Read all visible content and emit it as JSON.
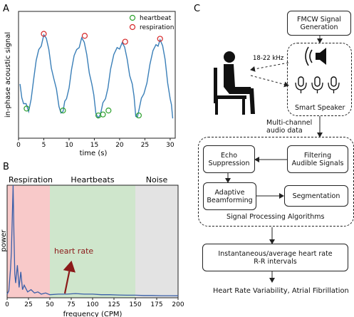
{
  "panels": {
    "a": "A",
    "b": "B",
    "c": "C"
  },
  "panel_a": {
    "ylabel": "in-phase acoustic signal",
    "xlabel": "time (s)",
    "xticks": [
      "0",
      "5",
      "10",
      "15",
      "20",
      "25",
      "30"
    ],
    "legend": {
      "heartbeat": "heartbeat",
      "respiration": "respiration"
    },
    "colors": {
      "line": "#3a7fb8",
      "heartbeat": "#2ca02c",
      "respiration": "#d62728"
    }
  },
  "panel_b": {
    "ylabel": "power",
    "xlabel": "frequency (CPM)",
    "xticks": [
      "0",
      "25",
      "50",
      "75",
      "100",
      "125",
      "150",
      "175",
      "200"
    ],
    "bands": {
      "respiration": "Respiration",
      "heartbeats": "Heartbeats",
      "noise": "Noise"
    },
    "annotation": "heart rate",
    "colors": {
      "respiration": "#f8c9c9",
      "heartbeats": "#cfe6cc",
      "noise": "#e3e3e3",
      "line": "#3a5fa8",
      "arrow": "#8b1a1a"
    }
  },
  "chart_data": [
    {
      "type": "line",
      "title": "",
      "xlabel": "time (s)",
      "ylabel": "in-phase acoustic signal",
      "xlim": [
        0,
        31
      ],
      "x": [
        0.3,
        1,
        2,
        3,
        4,
        5,
        6,
        7,
        8,
        8.8,
        9.5,
        10.5,
        11.5,
        12.5,
        13.5,
        14.5,
        15.3,
        16.2,
        17.2,
        18.2,
        19.5,
        20.5,
        21.5,
        22.5,
        23.2,
        23.8,
        24.8,
        26,
        27.2,
        28,
        29,
        30,
        30.5
      ],
      "y": [
        0.45,
        0.25,
        0.17,
        0.5,
        0.8,
        0.95,
        0.8,
        0.5,
        0.22,
        0.17,
        0.3,
        0.6,
        0.8,
        0.92,
        0.75,
        0.45,
        0.15,
        0.14,
        0.3,
        0.6,
        0.82,
        0.87,
        0.7,
        0.45,
        0.12,
        0.18,
        0.35,
        0.65,
        0.85,
        0.9,
        0.7,
        0.3,
        0.1
      ],
      "series": [
        {
          "name": "heartbeat",
          "marker": "circle",
          "points": [
            [
              1.6,
              0.2
            ],
            [
              8.8,
              0.18
            ],
            [
              15.8,
              0.13
            ],
            [
              16.7,
              0.14
            ],
            [
              17.8,
              0.18
            ],
            [
              23.8,
              0.13
            ]
          ]
        },
        {
          "name": "respiration",
          "marker": "circle",
          "points": [
            [
              5,
              0.96
            ],
            [
              13.1,
              0.94
            ],
            [
              21.1,
              0.88
            ],
            [
              28,
              0.91
            ]
          ]
        }
      ],
      "ylim": [
        0,
        1
      ]
    },
    {
      "type": "line",
      "title": "",
      "xlabel": "frequency (CPM)",
      "ylabel": "power",
      "xlim": [
        0,
        200
      ],
      "ylim": [
        0,
        1
      ],
      "x": [
        0,
        2,
        4,
        5,
        6,
        7,
        8,
        9,
        10,
        12,
        14,
        16,
        18,
        20,
        24,
        28,
        32,
        36,
        40,
        45,
        50,
        60,
        70,
        80,
        90,
        100,
        110,
        120,
        130,
        140,
        150,
        160,
        170,
        180,
        190,
        200
      ],
      "y": [
        0.02,
        0.05,
        0.25,
        0.4,
        0.7,
        1.0,
        0.55,
        0.2,
        0.12,
        0.28,
        0.08,
        0.22,
        0.06,
        0.1,
        0.04,
        0.06,
        0.03,
        0.04,
        0.02,
        0.03,
        0.015,
        0.02,
        0.02,
        0.025,
        0.02,
        0.02,
        0.015,
        0.015,
        0.012,
        0.01,
        0.01,
        0.008,
        0.008,
        0.006,
        0.006,
        0.005
      ],
      "bands": [
        {
          "label": "Respiration",
          "range": [
            0,
            50
          ]
        },
        {
          "label": "Heartbeats",
          "range": [
            50,
            150
          ]
        },
        {
          "label": "Noise",
          "range": [
            150,
            200
          ]
        }
      ],
      "annotations": [
        {
          "text": "heart rate",
          "x": 67
        }
      ]
    }
  ],
  "diagram": {
    "fmcw": "FMCW Signal\nGeneration",
    "freq": "18-22 kHz",
    "speaker": "Smart Speaker",
    "multichannel": "Multi-channel\naudio data",
    "echo": "Echo\nSuppression",
    "filter": "Filtering\nAudible Signals",
    "adaptive": "Adaptive\nBeamforming",
    "segmentation": "Segmentation",
    "algorithms": "Signal Processing Algorithms",
    "hr": "Instantaneous/average heart rate\nR-R intervals",
    "output": "Heart Rate Variability, Atrial Fibrillation"
  }
}
